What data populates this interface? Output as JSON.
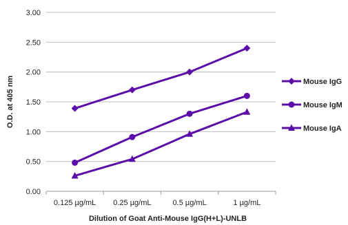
{
  "chart_data": {
    "type": "line",
    "title": "",
    "xlabel": "Dilution of Goat Anti-Mouse IgG(H+L)-UNLB",
    "ylabel": "O.D. at 405 nm",
    "categories": [
      "0.125 µg/mL",
      "0.25 µg/mL",
      "0.5 µg/mL",
      "1 µg/mL"
    ],
    "ylim": [
      0,
      3
    ],
    "yticks": [
      0.0,
      0.5,
      1.0,
      1.5,
      2.0,
      2.5,
      3.0
    ],
    "ytick_labels": [
      "0.00",
      "0.50",
      "1.00",
      "1.50",
      "2.00",
      "2.50",
      "3.00"
    ],
    "grid": true,
    "legend_position": "right",
    "series": [
      {
        "name": "Mouse IgG",
        "marker": "diamond",
        "color": "#5b0fa8",
        "values": [
          1.39,
          1.7,
          2.0,
          2.4
        ]
      },
      {
        "name": "Mouse IgM",
        "marker": "circle",
        "color": "#5b0fa8",
        "values": [
          0.48,
          0.91,
          1.3,
          1.6
        ]
      },
      {
        "name": "Mouse IgA",
        "marker": "triangle",
        "color": "#5b0fa8",
        "values": [
          0.26,
          0.54,
          0.96,
          1.33
        ]
      }
    ]
  }
}
